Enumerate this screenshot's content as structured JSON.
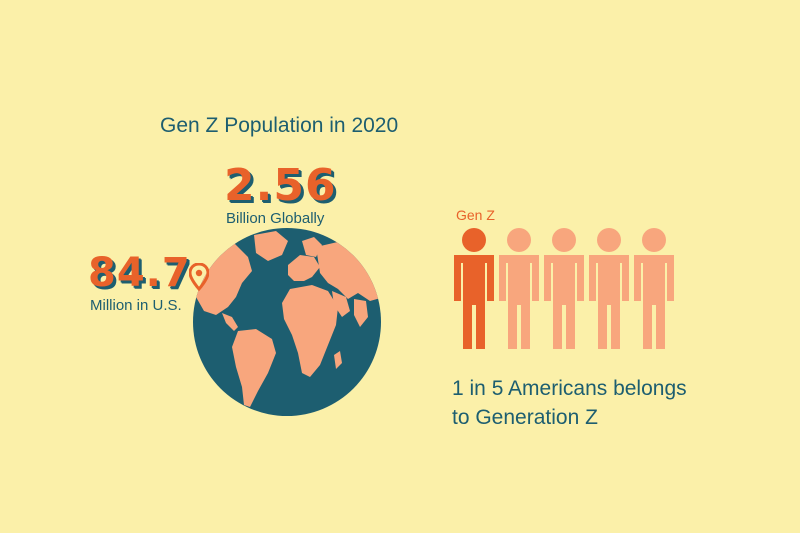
{
  "title": "Gen Z Population in 2020",
  "global": {
    "value": "2.56",
    "label": "Billion Globally"
  },
  "us": {
    "value": "84.7",
    "label": "Million in U.S."
  },
  "people_chart": {
    "label": "Gen Z",
    "highlighted": 1,
    "total": 5,
    "highlight_color": "#e8622a",
    "other_color": "#f8a67d"
  },
  "statement": {
    "line1": "1 in 5 Americans belongs",
    "line2": "to Generation Z"
  },
  "colors": {
    "background": "#fbf0a9",
    "ocean": "#1d5e70",
    "land": "#f8a67d",
    "accent": "#e8622a"
  },
  "icons": {
    "pin": "location-pin-icon",
    "globe": "globe-icon",
    "person": "person-icon"
  }
}
